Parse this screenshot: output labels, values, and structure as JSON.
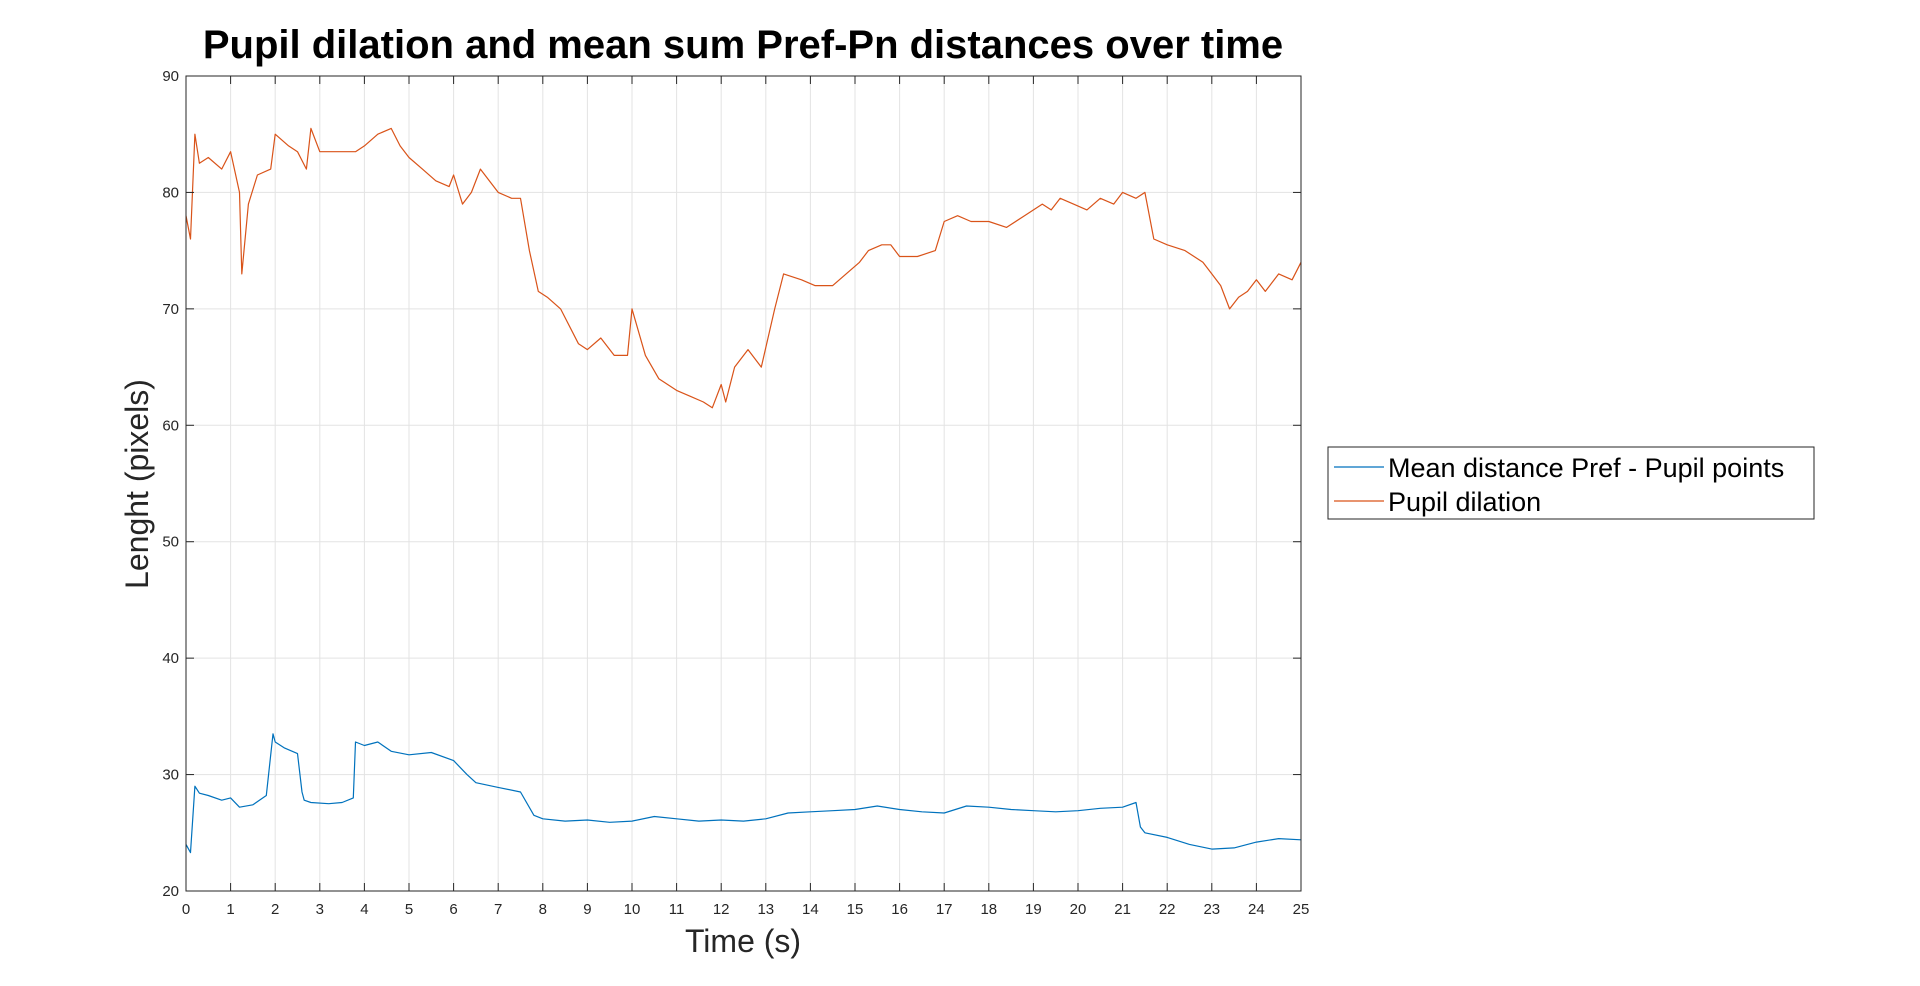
{
  "chart_data": {
    "type": "line",
    "title": "Pupil dilation and mean sum Pref-Pn distances over time",
    "xlabel": "Time (s)",
    "ylabel": "Lenght (pixels)",
    "xlim": [
      0,
      25
    ],
    "ylim": [
      20,
      90
    ],
    "xticks": [
      "0",
      "1",
      "2",
      "3",
      "4",
      "5",
      "6",
      "7",
      "8",
      "9",
      "10",
      "11",
      "12",
      "13",
      "14",
      "15",
      "16",
      "17",
      "18",
      "19",
      "20",
      "21",
      "22",
      "23",
      "24",
      "25"
    ],
    "yticks": [
      "20",
      "30",
      "40",
      "50",
      "60",
      "70",
      "80",
      "90"
    ],
    "grid": true,
    "legend_position": "outside-right",
    "series": [
      {
        "name": "Mean distance Pref - Pupil points",
        "color": "#0072BD",
        "x": [
          0,
          0.1,
          0.2,
          0.3,
          0.5,
          0.8,
          1.0,
          1.2,
          1.5,
          1.8,
          1.95,
          2.0,
          2.2,
          2.5,
          2.6,
          2.65,
          2.8,
          3.2,
          3.5,
          3.75,
          3.8,
          4.0,
          4.3,
          4.6,
          5.0,
          5.5,
          6.0,
          6.3,
          6.5,
          7.0,
          7.5,
          7.8,
          8.0,
          8.5,
          9.0,
          9.5,
          10.0,
          10.5,
          11.0,
          11.5,
          12.0,
          12.5,
          13.0,
          13.5,
          14.0,
          14.5,
          15.0,
          15.5,
          16.0,
          16.5,
          17.0,
          17.5,
          18.0,
          18.5,
          19.0,
          19.5,
          20.0,
          20.5,
          21.0,
          21.3,
          21.4,
          21.5,
          22.0,
          22.5,
          23.0,
          23.5,
          24.0,
          24.5,
          25.0
        ],
        "y": [
          24.0,
          23.3,
          29.0,
          28.4,
          28.2,
          27.8,
          28.0,
          27.2,
          27.4,
          28.2,
          33.5,
          32.8,
          32.3,
          31.8,
          28.5,
          27.8,
          27.6,
          27.5,
          27.6,
          28.0,
          32.8,
          32.5,
          32.8,
          32.0,
          31.7,
          31.9,
          31.2,
          30.0,
          29.3,
          28.9,
          28.5,
          26.5,
          26.2,
          26.0,
          26.1,
          25.9,
          26.0,
          26.4,
          26.2,
          26.0,
          26.1,
          26.0,
          26.2,
          26.7,
          26.8,
          26.9,
          27.0,
          27.3,
          27.0,
          26.8,
          26.7,
          27.3,
          27.2,
          27.0,
          26.9,
          26.8,
          26.9,
          27.1,
          27.2,
          27.6,
          25.5,
          25.0,
          24.6,
          24.0,
          23.6,
          23.7,
          24.2,
          24.5,
          24.4
        ]
      },
      {
        "name": "Pupil dilation",
        "color": "#D95319",
        "x": [
          0,
          0.1,
          0.2,
          0.3,
          0.5,
          0.8,
          1.0,
          1.2,
          1.25,
          1.4,
          1.6,
          1.9,
          2.0,
          2.3,
          2.5,
          2.7,
          2.8,
          3.0,
          3.4,
          3.8,
          4.0,
          4.3,
          4.6,
          4.8,
          5.0,
          5.3,
          5.6,
          5.9,
          6.0,
          6.2,
          6.4,
          6.6,
          6.8,
          7.0,
          7.3,
          7.5,
          7.7,
          7.9,
          8.1,
          8.4,
          8.8,
          9.0,
          9.3,
          9.6,
          9.9,
          10.0,
          10.3,
          10.6,
          11.0,
          11.3,
          11.6,
          11.8,
          12.0,
          12.1,
          12.3,
          12.6,
          12.9,
          13.2,
          13.4,
          13.8,
          14.1,
          14.5,
          14.8,
          15.1,
          15.3,
          15.6,
          15.8,
          16.0,
          16.4,
          16.8,
          17.0,
          17.3,
          17.6,
          18.0,
          18.4,
          18.8,
          19.2,
          19.4,
          19.6,
          19.9,
          20.2,
          20.5,
          20.8,
          21.0,
          21.3,
          21.5,
          21.7,
          22.0,
          22.4,
          22.8,
          23.0,
          23.2,
          23.4,
          23.6,
          23.8,
          24.0,
          24.2,
          24.5,
          24.8,
          25.0
        ],
        "y": [
          78.0,
          76.0,
          85.0,
          82.5,
          83.0,
          82.0,
          83.5,
          80.0,
          73.0,
          79.0,
          81.5,
          82.0,
          85.0,
          84.0,
          83.5,
          82.0,
          85.5,
          83.5,
          83.5,
          83.5,
          84.0,
          85.0,
          85.5,
          84.0,
          83.0,
          82.0,
          81.0,
          80.5,
          81.5,
          79.0,
          80.0,
          82.0,
          81.0,
          80.0,
          79.5,
          79.5,
          75.0,
          71.5,
          71.0,
          70.0,
          67.0,
          66.5,
          67.5,
          66.0,
          66.0,
          70.0,
          66.0,
          64.0,
          63.0,
          62.5,
          62.0,
          61.5,
          63.5,
          62.0,
          65.0,
          66.5,
          65.0,
          70.0,
          73.0,
          72.5,
          72.0,
          72.0,
          73.0,
          74.0,
          75.0,
          75.5,
          75.5,
          74.5,
          74.5,
          75.0,
          77.5,
          78.0,
          77.5,
          77.5,
          77.0,
          78.0,
          79.0,
          78.5,
          79.5,
          79.0,
          78.5,
          79.5,
          79.0,
          80.0,
          79.5,
          80.0,
          76.0,
          75.5,
          75.0,
          74.0,
          73.0,
          72.0,
          70.0,
          71.0,
          71.5,
          72.5,
          71.5,
          73.0,
          72.5,
          74.0
        ]
      }
    ]
  }
}
